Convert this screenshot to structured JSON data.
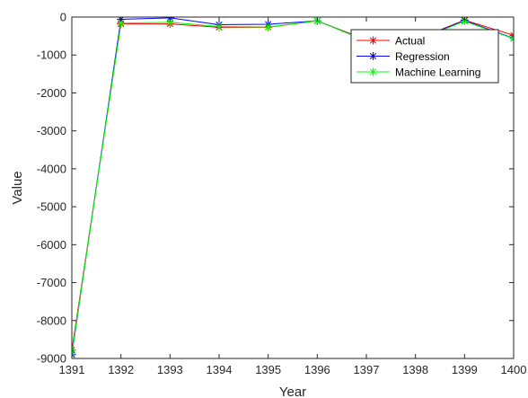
{
  "chart_data": {
    "type": "line",
    "xlabel": "Year",
    "ylabel": "Value",
    "xlim": [
      1391,
      1400
    ],
    "ylim": [
      -9000,
      0
    ],
    "x": [
      1391,
      1392,
      1393,
      1394,
      1395,
      1396,
      1397,
      1398,
      1399,
      1400
    ],
    "x_ticks": [
      "1391",
      "1392",
      "1393",
      "1394",
      "1395",
      "1396",
      "1397",
      "1398",
      "1399",
      "1400"
    ],
    "y_ticks": [
      "-9000",
      "-8000",
      "-7000",
      "-6000",
      "-5000",
      "-4000",
      "-3000",
      "-2000",
      "-1000",
      "0"
    ],
    "grid": false,
    "legend_position": "top-right",
    "series": [
      {
        "name": "Actual",
        "color": "#ff0000",
        "marker": "asterisk",
        "values": [
          -8780,
          -180,
          -180,
          -270,
          -270,
          -100,
          -600,
          -600,
          -80,
          -480
        ]
      },
      {
        "name": "Regression",
        "color": "#0000ff",
        "marker": "asterisk",
        "values": [
          -8900,
          -60,
          -20,
          -200,
          -190,
          -100,
          -620,
          -620,
          -90,
          -560
        ]
      },
      {
        "name": "Machine Learning",
        "color": "#00ff00",
        "marker": "asterisk",
        "values": [
          -8860,
          -160,
          -140,
          -250,
          -260,
          -100,
          -630,
          -630,
          -110,
          -570
        ]
      }
    ]
  }
}
